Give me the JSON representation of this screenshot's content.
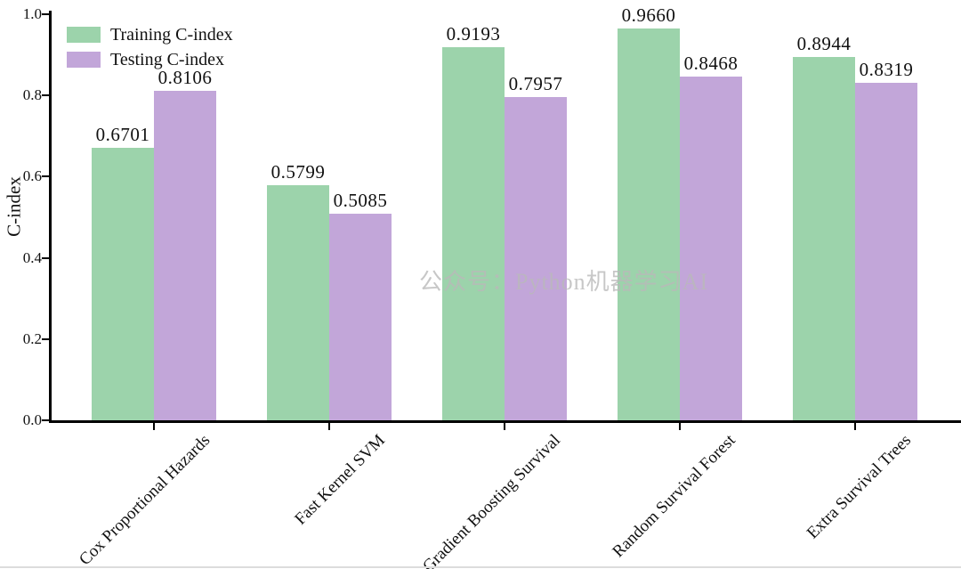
{
  "watermark": "公众号：Python机器学习AI",
  "chart_data": {
    "type": "bar",
    "title": "",
    "xlabel": "",
    "ylabel": "C-index",
    "ylim": [
      0.0,
      1.0
    ],
    "yticks": [
      0.0,
      0.2,
      0.4,
      0.6,
      0.8,
      1.0
    ],
    "grid": false,
    "legend_position": "upper left",
    "bar_value_labels_decimals": 4,
    "categories": [
      "Cox Proportional Hazards",
      "Fast Kernel SVM",
      "Gradient Boosting Survival",
      "Random Survival Forest",
      "Extra Survival Trees"
    ],
    "series": [
      {
        "name": "Training C-index",
        "color": "#9cd3ab",
        "values": [
          0.6701,
          0.5799,
          0.9193,
          0.966,
          0.8944
        ]
      },
      {
        "name": "Testing C-index",
        "color": "#c2a6d9",
        "values": [
          0.8106,
          0.5085,
          0.7957,
          0.8468,
          0.8319
        ]
      }
    ]
  }
}
